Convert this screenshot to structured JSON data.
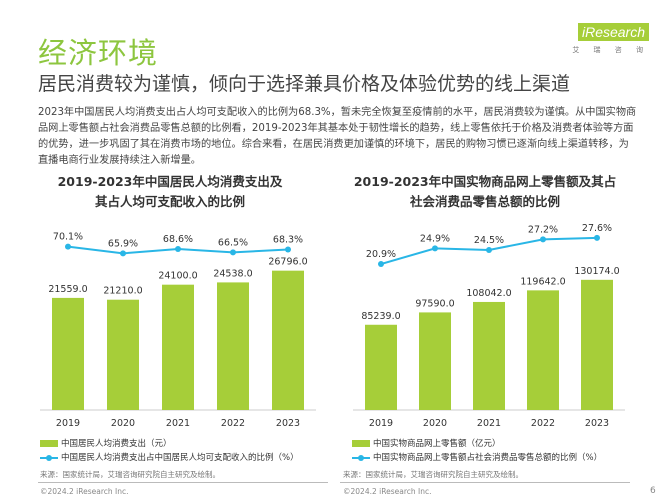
{
  "header": {
    "title": "经济环境",
    "subtitle": "居民消费较为谨慎，倾向于选择兼具价格及体验优势的线上渠道",
    "logo": "iResearch",
    "logo_sub": "艾 瑞 咨 询"
  },
  "body_text": "2023年中国居民人均消费支出占人均可支配收入的比例为68.3%，暂未完全恢复至疫情前的水平，居民消费较为谨慎。从中国实物商品网上零售额占社会消费品零售总额的比例看，2019-2023年其基本处于韧性增长的趋势，线上零售依托于价格及消费者体验等方面的优势，进一步巩固了其在消费市场的地位。综合来看，在居民消费更加谨慎的环境下，居民的购物习惯已逐渐向线上渠道转移，为直播电商行业发展持续注入新增量。",
  "colors": {
    "accent": "#8dc63f",
    "bar": "#a6ce39",
    "line": "#29b6e6"
  },
  "chart_data": [
    {
      "type": "bar+line",
      "title_line1": "2019-2023年中国居民人均消费支出及",
      "title_line2": "其占人均可支配收入的比例",
      "categories": [
        "2019",
        "2020",
        "2021",
        "2022",
        "2023"
      ],
      "series": [
        {
          "name": "中国居民人均消费支出（元）",
          "type": "bar",
          "values": [
            21559.0,
            21210.0,
            24100.0,
            24538.0,
            26796.0
          ],
          "labels": [
            "21559.0",
            "21210.0",
            "24100.0",
            "24538.0",
            "26796.0"
          ]
        },
        {
          "name": "中国居民人均消费支出占中国居民人均可支配收入的比例（%）",
          "type": "line",
          "values": [
            70.1,
            65.9,
            68.6,
            66.5,
            68.3
          ],
          "labels": [
            "70.1%",
            "65.9%",
            "68.6%",
            "66.5%",
            "68.3%"
          ]
        }
      ],
      "source": "来源：国家统计局，艾瑞咨询研究院自主研究及绘制。"
    },
    {
      "type": "bar+line",
      "title_line1": "2019-2023年中国实物商品网上零售额及其占",
      "title_line2": "社会消费品零售总额的比例",
      "categories": [
        "2019",
        "2020",
        "2021",
        "2022",
        "2023"
      ],
      "series": [
        {
          "name": "中国实物商品网上零售额（亿元）",
          "type": "bar",
          "values": [
            85239.0,
            97590.0,
            108042.0,
            119642.0,
            130174.0
          ],
          "labels": [
            "85239.0",
            "97590.0",
            "108042.0",
            "119642.0",
            "130174.0"
          ]
        },
        {
          "name": "中国实物商品网上零售额占社会消费品零售总额的比例（%）",
          "type": "line",
          "values": [
            20.9,
            24.9,
            24.5,
            27.2,
            27.6
          ],
          "labels": [
            "20.9%",
            "24.9%",
            "24.5%",
            "27.2%",
            "27.6%"
          ]
        }
      ],
      "source": "来源：国家统计局，艾瑞咨询研究院自主研究及绘制。"
    }
  ],
  "footer": {
    "left": "©2024.2 iResearch Inc.",
    "right": "©2024.2 iResearch Inc.",
    "page": "6"
  }
}
